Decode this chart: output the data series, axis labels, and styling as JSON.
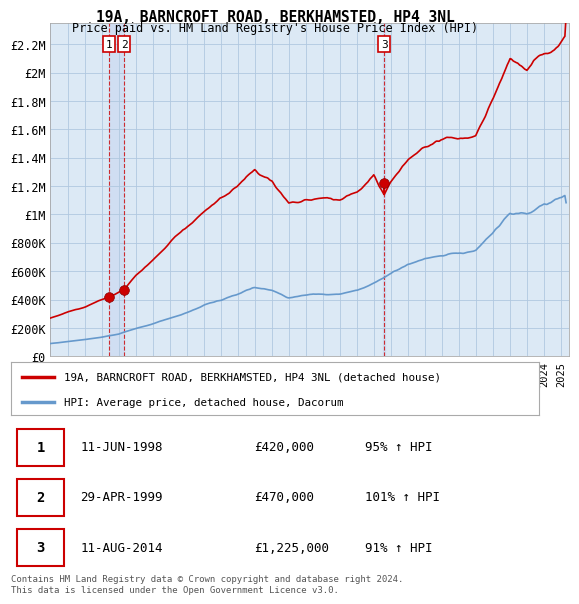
{
  "title": "19A, BARNCROFT ROAD, BERKHAMSTED, HP4 3NL",
  "subtitle": "Price paid vs. HM Land Registry's House Price Index (HPI)",
  "ylabel_ticks": [
    "£0",
    "£200K",
    "£400K",
    "£600K",
    "£800K",
    "£1M",
    "£1.2M",
    "£1.4M",
    "£1.6M",
    "£1.8M",
    "£2M",
    "£2.2M"
  ],
  "ytick_values": [
    0,
    200000,
    400000,
    600000,
    800000,
    1000000,
    1200000,
    1400000,
    1600000,
    1800000,
    2000000,
    2200000
  ],
  "ylim": [
    0,
    2350000
  ],
  "xmin": 1995.0,
  "xmax": 2025.5,
  "sale_dates": [
    1998.44,
    1999.33,
    2014.61
  ],
  "sale_prices": [
    420000,
    470000,
    1225000
  ],
  "sale_labels": [
    "1",
    "2",
    "3"
  ],
  "red_line_color": "#cc0000",
  "blue_line_color": "#6699cc",
  "chart_bg_color": "#dce9f5",
  "background_color": "#ffffff",
  "grid_color": "#b0c8e0",
  "legend_label_red": "19A, BARNCROFT ROAD, BERKHAMSTED, HP4 3NL (detached house)",
  "legend_label_blue": "HPI: Average price, detached house, Dacorum",
  "table_rows": [
    {
      "num": "1",
      "date": "11-JUN-1998",
      "price": "£420,000",
      "hpi": "95% ↑ HPI"
    },
    {
      "num": "2",
      "date": "29-APR-1999",
      "price": "£470,000",
      "hpi": "101% ↑ HPI"
    },
    {
      "num": "3",
      "date": "11-AUG-2014",
      "price": "£1,225,000",
      "hpi": "91% ↑ HPI"
    }
  ],
  "footnote": "Contains HM Land Registry data © Crown copyright and database right 2024.\nThis data is licensed under the Open Government Licence v3.0.",
  "dashed_vline_color": "#cc0000"
}
